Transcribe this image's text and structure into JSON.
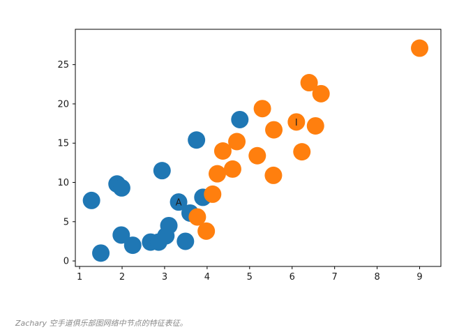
{
  "chart_data": {
    "type": "scatter",
    "xlim": [
      0.9,
      9.5
    ],
    "ylim": [
      -0.7,
      29.5
    ],
    "xticks": [
      1,
      2,
      3,
      4,
      5,
      6,
      7,
      8,
      9
    ],
    "yticks": [
      0,
      5,
      10,
      15,
      20,
      25
    ],
    "grid": false,
    "series": [
      {
        "color": "#1f77b4",
        "points": [
          [
            1.28,
            7.7
          ],
          [
            1.5,
            1.0
          ],
          [
            1.88,
            9.8
          ],
          [
            1.99,
            9.3
          ],
          [
            1.98,
            3.3
          ],
          [
            2.25,
            2.0
          ],
          [
            2.67,
            2.4
          ],
          [
            2.86,
            2.4
          ],
          [
            3.03,
            3.2
          ],
          [
            2.94,
            11.5
          ],
          [
            3.1,
            4.5
          ],
          [
            3.33,
            7.5
          ],
          [
            3.49,
            2.5
          ],
          [
            3.6,
            6.1
          ],
          [
            3.75,
            15.4
          ],
          [
            3.9,
            8.1
          ],
          [
            4.77,
            18.0
          ]
        ]
      },
      {
        "color": "#ff7f0e",
        "points": [
          [
            3.77,
            5.6
          ],
          [
            3.98,
            3.8
          ],
          [
            4.13,
            8.5
          ],
          [
            4.24,
            11.1
          ],
          [
            4.37,
            14.0
          ],
          [
            4.6,
            11.7
          ],
          [
            4.7,
            15.2
          ],
          [
            5.18,
            13.4
          ],
          [
            5.3,
            19.4
          ],
          [
            5.57,
            16.7
          ],
          [
            5.56,
            10.9
          ],
          [
            6.1,
            17.7
          ],
          [
            6.23,
            13.9
          ],
          [
            6.4,
            22.7
          ],
          [
            6.55,
            17.2
          ],
          [
            6.68,
            21.3
          ],
          [
            9.0,
            27.1
          ]
        ]
      }
    ],
    "annotations": [
      {
        "text": "A",
        "x": 3.33,
        "y": 7.5
      },
      {
        "text": "I",
        "x": 6.1,
        "y": 17.7
      }
    ]
  },
  "caption": "Zachary 空手道俱乐部图网络中节点的特征表征。"
}
